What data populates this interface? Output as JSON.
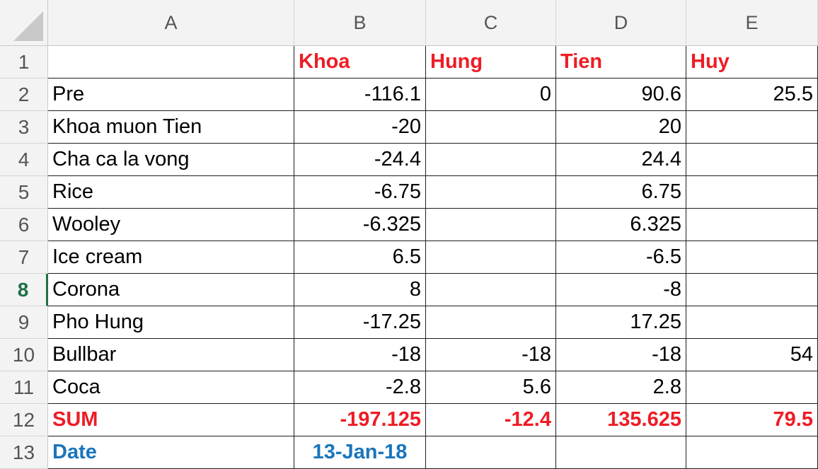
{
  "colors": {
    "header_red": "#ee1c25",
    "date_blue": "#1a75bc",
    "active_row_green": "#1e7145"
  },
  "sheet": {
    "columns": [
      "A",
      "B",
      "C",
      "D",
      "E"
    ],
    "active_row": "8",
    "rows": [
      {
        "num": "1",
        "a": "",
        "b": "Khoa",
        "c": "Hung",
        "d": "Tien",
        "e": "Huy"
      },
      {
        "num": "2",
        "a": "Pre",
        "b": "-116.1",
        "c": "0",
        "d": "90.6",
        "e": "25.5"
      },
      {
        "num": "3",
        "a": "Khoa muon Tien",
        "b": "-20",
        "c": "",
        "d": "20",
        "e": ""
      },
      {
        "num": "4",
        "a": "Cha ca la vong",
        "b": "-24.4",
        "c": "",
        "d": "24.4",
        "e": ""
      },
      {
        "num": "5",
        "a": "Rice",
        "b": "-6.75",
        "c": "",
        "d": "6.75",
        "e": ""
      },
      {
        "num": "6",
        "a": "Wooley",
        "b": "-6.325",
        "c": "",
        "d": "6.325",
        "e": ""
      },
      {
        "num": "7",
        "a": "Ice cream",
        "b": "6.5",
        "c": "",
        "d": "-6.5",
        "e": ""
      },
      {
        "num": "8",
        "a": "Corona",
        "b": "8",
        "c": "",
        "d": "-8",
        "e": ""
      },
      {
        "num": "9",
        "a": "Pho Hung",
        "b": "-17.25",
        "c": "",
        "d": "17.25",
        "e": ""
      },
      {
        "num": "10",
        "a": "Bullbar",
        "b": "-18",
        "c": "-18",
        "d": "-18",
        "e": "54"
      },
      {
        "num": "11",
        "a": "Coca",
        "b": "-2.8",
        "c": "5.6",
        "d": "2.8",
        "e": ""
      },
      {
        "num": "12",
        "a": "SUM",
        "b": "-197.125",
        "c": "-12.4",
        "d": "135.625",
        "e": "79.5"
      },
      {
        "num": "13",
        "a": "Date",
        "b": "13-Jan-18",
        "c": "",
        "d": "",
        "e": ""
      }
    ]
  }
}
